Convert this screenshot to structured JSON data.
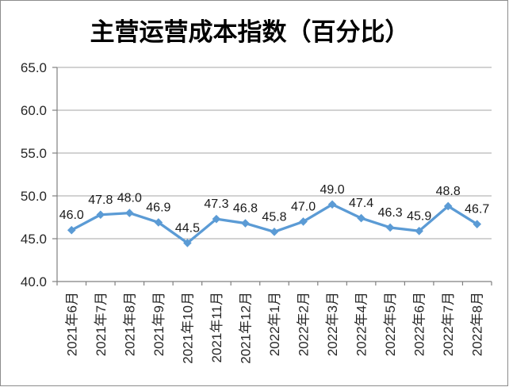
{
  "window": {
    "background": "#ffffff",
    "border_color": "#8c8c8c"
  },
  "chart_data": {
    "type": "line",
    "title": "主营运营成本指数（百分比）",
    "categories": [
      "2021年6月",
      "2021年7月",
      "2021年8月",
      "2021年9月",
      "2021年10月",
      "2021年11月",
      "2021年12月",
      "2022年1月",
      "2022年2月",
      "2022年3月",
      "2022年4月",
      "2022年5月",
      "2022年6月",
      "2022年7月",
      "2022年8月"
    ],
    "series": [
      {
        "name": "主营运营成本指数",
        "values": [
          46.0,
          47.8,
          48.0,
          46.9,
          44.5,
          47.3,
          46.8,
          45.8,
          47.0,
          49.0,
          47.4,
          46.3,
          45.9,
          48.8,
          46.7
        ],
        "data_labels": [
          "46.0",
          "47.8",
          "48.0",
          "46.9",
          "44.5",
          "47.3",
          "46.8",
          "45.8",
          "47.0",
          "49.0",
          "47.4",
          "46.3",
          "45.9",
          "48.8",
          "46.7"
        ],
        "color": "#5b9bd5",
        "marker": "diamond"
      }
    ],
    "xlabel": "",
    "ylabel": "",
    "ylim": [
      40.0,
      65.0
    ],
    "ytick_step": 5.0,
    "ytick_labels": [
      "40.0",
      "45.0",
      "50.0",
      "55.0",
      "60.0",
      "65.0"
    ],
    "grid": true,
    "gridline_color": "#a6a6a6",
    "axis_color": "#808080",
    "legend_position": "none",
    "data_label_position": "above",
    "x_tick_label_rotation_deg": 90
  }
}
